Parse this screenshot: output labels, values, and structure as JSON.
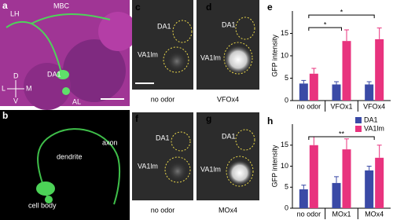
{
  "panels": {
    "a": {
      "label": "a",
      "texts": [
        "LH",
        "MBC",
        "DA1",
        "AL",
        "D",
        "V",
        "L",
        "M"
      ]
    },
    "b": {
      "label": "b",
      "texts": [
        "dendrite",
        "axon",
        "cell body"
      ]
    },
    "c": {
      "label": "c",
      "glomeruli": [
        "DA1",
        "VA1lm"
      ],
      "caption": "no odor"
    },
    "d": {
      "label": "d",
      "glomeruli": [
        "DA1",
        "VA1lm"
      ],
      "caption": "VFOx4"
    },
    "f": {
      "label": "f",
      "glomeruli": [
        "DA1",
        "VA1lm"
      ],
      "caption": "no odor"
    },
    "g": {
      "label": "g",
      "glomeruli": [
        "DA1",
        "VA1lm"
      ],
      "caption": "MOx4"
    }
  },
  "chart_data": [
    {
      "type": "bar",
      "panel": "e",
      "y_label": "GFP intensity",
      "categories": [
        "no odor",
        "VFOx1",
        "VFOx4"
      ],
      "series": [
        {
          "name": "DA1",
          "color": "#3a4aa6",
          "values": [
            3.8,
            3.6,
            3.6
          ],
          "errors": [
            0.7,
            0.6,
            0.6
          ]
        },
        {
          "name": "VA1lm",
          "color": "#e8337e",
          "values": [
            6,
            13.3,
            13.7
          ],
          "errors": [
            1.2,
            2.5,
            2.5
          ]
        }
      ],
      "significance": [
        {
          "label": "*",
          "between": [
            "no odor",
            "VFOx1"
          ],
          "y": 16.3
        },
        {
          "label": "*",
          "between": [
            "no odor",
            "VFOx4"
          ],
          "y": 19.1
        }
      ],
      "ylim": [
        0,
        20
      ],
      "yticks": [
        0,
        5,
        10,
        15
      ]
    },
    {
      "type": "bar",
      "panel": "h",
      "y_label": "GFP intensity",
      "categories": [
        "no odor",
        "MOx1",
        "MOx4"
      ],
      "series": [
        {
          "name": "DA1",
          "color": "#3a4aa6",
          "values": [
            4.5,
            6,
            9
          ],
          "errors": [
            1,
            1.5,
            1
          ]
        },
        {
          "name": "VA1lm",
          "color": "#e8337e",
          "values": [
            15,
            14,
            12
          ],
          "errors": [
            2,
            2.5,
            3
          ]
        }
      ],
      "significance": [
        {
          "label": "**",
          "between": [
            "no odor",
            "MOx4"
          ],
          "y": 17
        }
      ],
      "ylim": [
        0,
        20
      ],
      "yticks": [
        0,
        5,
        10,
        15
      ],
      "legend": "top-right"
    }
  ]
}
